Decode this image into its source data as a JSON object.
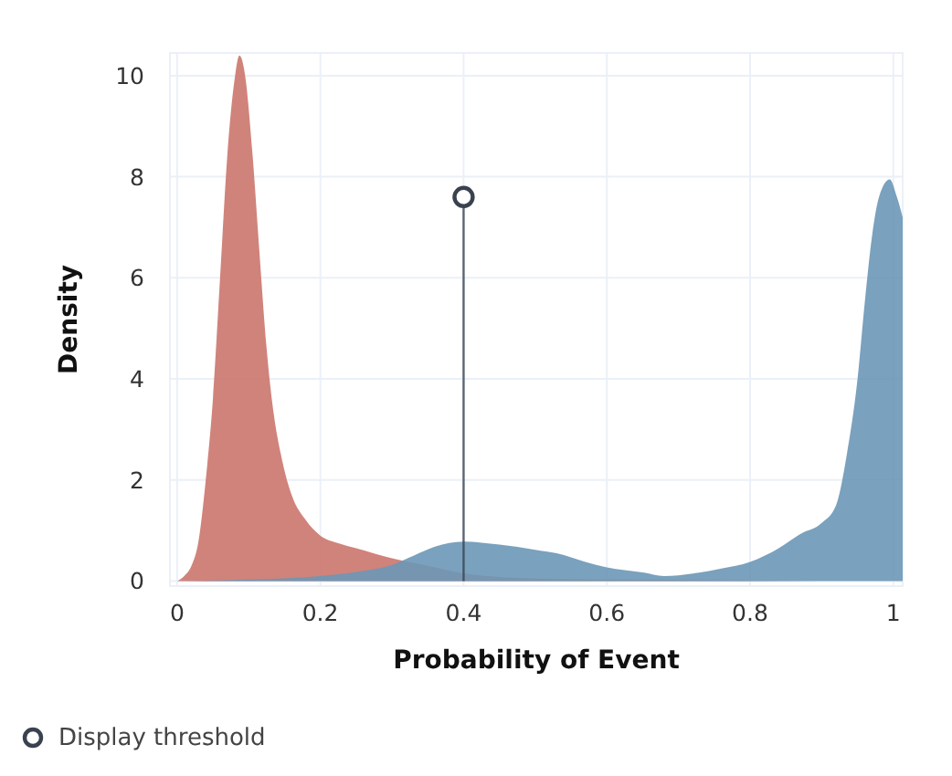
{
  "chart_data": {
    "type": "area",
    "xlabel": "Probability of Event",
    "ylabel": "Density",
    "xlim": [
      -0.01,
      1.013
    ],
    "xticks": [
      0,
      0.2,
      0.4,
      0.6,
      0.8,
      1
    ],
    "ylim": [
      -0.1,
      10.45
    ],
    "yticks": [
      0,
      2,
      4,
      6,
      8,
      10
    ],
    "grid": true,
    "legend": "bottom left",
    "series": [
      {
        "color": "#cb756d",
        "x": [
          0,
          0.01,
          0.02,
          0.03,
          0.04,
          0.05,
          0.06,
          0.07,
          0.08,
          0.087,
          0.095,
          0.105,
          0.115,
          0.125,
          0.135,
          0.145,
          0.16,
          0.18,
          0.2,
          0.225,
          0.25,
          0.3,
          0.35,
          0.4,
          0.45,
          0.5,
          0.6,
          0.7,
          0.8,
          0.9,
          1.0
        ],
        "values": [
          0,
          0.1,
          0.3,
          0.8,
          2.0,
          3.6,
          6.0,
          8.4,
          9.9,
          10.4,
          10.0,
          8.5,
          6.5,
          4.6,
          3.3,
          2.5,
          1.7,
          1.2,
          0.9,
          0.75,
          0.65,
          0.45,
          0.3,
          0.15,
          0.08,
          0.05,
          0.03,
          0.02,
          0.01,
          0,
          0
        ]
      },
      {
        "color": "#6b97b6",
        "x": [
          0,
          0.1,
          0.2,
          0.25,
          0.3,
          0.33,
          0.36,
          0.4,
          0.45,
          0.5,
          0.53,
          0.57,
          0.6,
          0.65,
          0.68,
          0.72,
          0.76,
          0.8,
          0.84,
          0.87,
          0.9,
          0.92,
          0.935,
          0.95,
          0.96,
          0.97,
          0.98,
          0.995,
          1.005,
          1.013
        ],
        "values": [
          0,
          0.03,
          0.1,
          0.18,
          0.32,
          0.5,
          0.68,
          0.78,
          0.72,
          0.62,
          0.55,
          0.38,
          0.27,
          0.17,
          0.1,
          0.15,
          0.25,
          0.38,
          0.65,
          0.93,
          1.15,
          1.5,
          2.5,
          4.0,
          5.5,
          6.8,
          7.6,
          7.95,
          7.6,
          7.2
        ]
      },
      {
        "type": "lollipop",
        "name": "Display threshold",
        "color": "#3a4250",
        "x": [
          0.4
        ],
        "values": [
          7.6
        ]
      }
    ]
  }
}
